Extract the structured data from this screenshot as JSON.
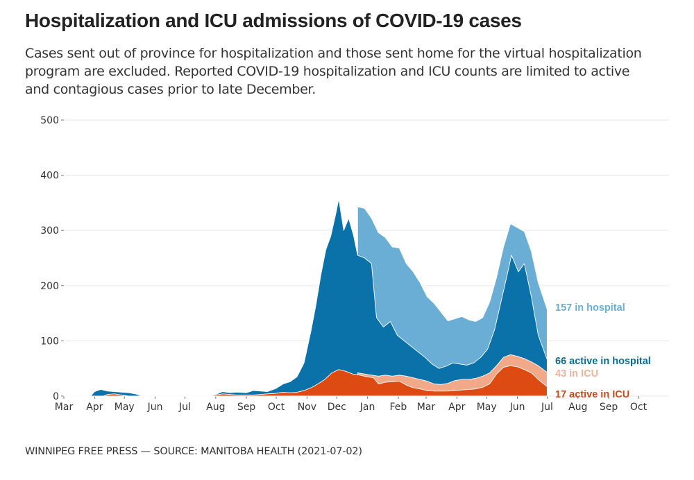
{
  "title": "Hospitalization and ICU admissions of COVID-19 cases",
  "subtitle": "Cases sent out of province for hospitalization and those sent home for the virtual hospitalization program are excluded. Reported COVID-19 hospitalization and ICU counts are limited to active and contagious cases prior to late December.",
  "footer": "WINNIPEG FREE PRESS — SOURCE: MANITOBA HEALTH (2021-07-02)",
  "colors": {
    "in_hospital": "#6aaed6",
    "active_in_hospital": "#0a72a8",
    "in_icu": "#f2a98a",
    "active_in_icu": "#dd4a12",
    "grid": "#ececec",
    "end_label_in_hospital": "#6aaed6",
    "end_label_active_in_hospital": "#0a6e94",
    "end_label_in_icu": "#f2b39a",
    "end_label_active_in_icu": "#c94a1e"
  },
  "chart_data": {
    "type": "area",
    "title": "Hospitalization and ICU admissions of COVID-19 cases",
    "xlabel": "",
    "ylabel": "",
    "ylim": [
      0,
      500
    ],
    "yticks": [
      0,
      100,
      200,
      300,
      400,
      500
    ],
    "grid": true,
    "x_range": [
      "2020-03-01",
      "2021-10-01"
    ],
    "xticks": [
      {
        "date": "2020-03-01",
        "label": "Mar"
      },
      {
        "date": "2020-04-01",
        "label": "Apr"
      },
      {
        "date": "2020-05-01",
        "label": "May"
      },
      {
        "date": "2020-06-01",
        "label": "Jun"
      },
      {
        "date": "2020-07-01",
        "label": "Jul"
      },
      {
        "date": "2020-08-01",
        "label": "Aug"
      },
      {
        "date": "2020-09-01",
        "label": "Sep"
      },
      {
        "date": "2020-10-01",
        "label": "Oct"
      },
      {
        "date": "2020-11-01",
        "label": "Nov"
      },
      {
        "date": "2020-12-01",
        "label": "Dec"
      },
      {
        "date": "2021-01-01",
        "label": "Jan"
      },
      {
        "date": "2021-02-01",
        "label": "Feb"
      },
      {
        "date": "2021-03-01",
        "label": "Mar"
      },
      {
        "date": "2021-04-01",
        "label": "Apr"
      },
      {
        "date": "2021-05-01",
        "label": "May"
      },
      {
        "date": "2021-06-01",
        "label": "Jun"
      },
      {
        "date": "2021-07-01",
        "label": "Jul"
      },
      {
        "date": "2021-08-01",
        "label": "Aug"
      },
      {
        "date": "2021-09-01",
        "label": "Sep"
      },
      {
        "date": "2021-10-01",
        "label": "Oct"
      }
    ],
    "series": [
      {
        "name": "In hospital",
        "key": "in_hospital",
        "end_label": "157 in hospital",
        "points": [
          [
            "2020-12-22",
            343
          ],
          [
            "2020-12-29",
            340
          ],
          [
            "2021-01-05",
            322
          ],
          [
            "2021-01-12",
            296
          ],
          [
            "2021-01-19",
            287
          ],
          [
            "2021-01-26",
            270
          ],
          [
            "2021-02-02",
            268
          ],
          [
            "2021-02-09",
            240
          ],
          [
            "2021-02-16",
            225
          ],
          [
            "2021-02-23",
            205
          ],
          [
            "2021-03-02",
            180
          ],
          [
            "2021-03-09",
            168
          ],
          [
            "2021-03-16",
            152
          ],
          [
            "2021-03-23",
            136
          ],
          [
            "2021-03-30",
            140
          ],
          [
            "2021-04-06",
            144
          ],
          [
            "2021-04-13",
            138
          ],
          [
            "2021-04-20",
            135
          ],
          [
            "2021-04-27",
            142
          ],
          [
            "2021-05-04",
            170
          ],
          [
            "2021-05-11",
            215
          ],
          [
            "2021-05-18",
            270
          ],
          [
            "2021-05-25",
            312
          ],
          [
            "2021-06-01",
            305
          ],
          [
            "2021-06-08",
            298
          ],
          [
            "2021-06-15",
            262
          ],
          [
            "2021-06-22",
            205
          ],
          [
            "2021-07-01",
            157
          ]
        ]
      },
      {
        "name": "Active in hospital",
        "key": "active_in_hospital",
        "end_label": "66 active in hospital",
        "points": [
          [
            "2020-03-01",
            0
          ],
          [
            "2020-03-28",
            0
          ],
          [
            "2020-04-01",
            8
          ],
          [
            "2020-04-07",
            12
          ],
          [
            "2020-04-14",
            9
          ],
          [
            "2020-04-21",
            8
          ],
          [
            "2020-04-28",
            7
          ],
          [
            "2020-05-05",
            6
          ],
          [
            "2020-05-12",
            4
          ],
          [
            "2020-05-16",
            2
          ],
          [
            "2020-05-17",
            0
          ],
          [
            "2020-07-22",
            0
          ],
          [
            "2020-08-01",
            3
          ],
          [
            "2020-08-08",
            8
          ],
          [
            "2020-08-15",
            6
          ],
          [
            "2020-08-22",
            7
          ],
          [
            "2020-09-01",
            6
          ],
          [
            "2020-09-08",
            10
          ],
          [
            "2020-09-15",
            9
          ],
          [
            "2020-09-22",
            8
          ],
          [
            "2020-10-01",
            14
          ],
          [
            "2020-10-08",
            22
          ],
          [
            "2020-10-15",
            26
          ],
          [
            "2020-10-22",
            35
          ],
          [
            "2020-10-29",
            60
          ],
          [
            "2020-11-05",
            118
          ],
          [
            "2020-11-10",
            165
          ],
          [
            "2020-11-15",
            220
          ],
          [
            "2020-11-20",
            265
          ],
          [
            "2020-11-25",
            290
          ],
          [
            "2020-11-30",
            330
          ],
          [
            "2020-12-03",
            357
          ],
          [
            "2020-12-08",
            300
          ],
          [
            "2020-12-13",
            322
          ],
          [
            "2020-12-18",
            290
          ],
          [
            "2020-12-22",
            255
          ],
          [
            "2020-12-29",
            250
          ],
          [
            "2021-01-05",
            240
          ],
          [
            "2021-01-10",
            142
          ],
          [
            "2021-01-17",
            125
          ],
          [
            "2021-01-24",
            135
          ],
          [
            "2021-01-31",
            110
          ],
          [
            "2021-02-07",
            100
          ],
          [
            "2021-02-14",
            90
          ],
          [
            "2021-02-21",
            80
          ],
          [
            "2021-02-28",
            70
          ],
          [
            "2021-03-07",
            58
          ],
          [
            "2021-03-14",
            50
          ],
          [
            "2021-03-21",
            54
          ],
          [
            "2021-03-28",
            60
          ],
          [
            "2021-04-04",
            58
          ],
          [
            "2021-04-11",
            56
          ],
          [
            "2021-04-18",
            60
          ],
          [
            "2021-04-25",
            70
          ],
          [
            "2021-05-02",
            85
          ],
          [
            "2021-05-09",
            120
          ],
          [
            "2021-05-16",
            175
          ],
          [
            "2021-05-23",
            230
          ],
          [
            "2021-05-26",
            255
          ],
          [
            "2021-06-02",
            225
          ],
          [
            "2021-06-08",
            240
          ],
          [
            "2021-06-15",
            180
          ],
          [
            "2021-06-22",
            110
          ],
          [
            "2021-07-01",
            66
          ]
        ]
      },
      {
        "name": "In ICU",
        "key": "in_icu",
        "end_label": "43 in ICU",
        "points": [
          [
            "2020-12-22",
            42
          ],
          [
            "2020-12-29",
            40
          ],
          [
            "2021-01-05",
            38
          ],
          [
            "2021-01-12",
            36
          ],
          [
            "2021-01-19",
            38
          ],
          [
            "2021-01-26",
            36
          ],
          [
            "2021-02-02",
            38
          ],
          [
            "2021-02-09",
            36
          ],
          [
            "2021-02-16",
            33
          ],
          [
            "2021-02-23",
            30
          ],
          [
            "2021-03-02",
            27
          ],
          [
            "2021-03-09",
            22
          ],
          [
            "2021-03-16",
            21
          ],
          [
            "2021-03-23",
            23
          ],
          [
            "2021-03-30",
            28
          ],
          [
            "2021-04-06",
            30
          ],
          [
            "2021-04-13",
            30
          ],
          [
            "2021-04-20",
            32
          ],
          [
            "2021-04-27",
            36
          ],
          [
            "2021-05-04",
            42
          ],
          [
            "2021-05-11",
            55
          ],
          [
            "2021-05-18",
            70
          ],
          [
            "2021-05-25",
            75
          ],
          [
            "2021-06-01",
            72
          ],
          [
            "2021-06-08",
            68
          ],
          [
            "2021-06-15",
            62
          ],
          [
            "2021-06-22",
            55
          ],
          [
            "2021-07-01",
            43
          ]
        ]
      },
      {
        "name": "Active in ICU",
        "key": "active_in_icu",
        "end_label": "17 active in ICU",
        "points": [
          [
            "2020-03-01",
            0
          ],
          [
            "2020-04-10",
            0
          ],
          [
            "2020-04-14",
            3
          ],
          [
            "2020-04-21",
            4
          ],
          [
            "2020-04-28",
            2
          ],
          [
            "2020-05-05",
            0
          ],
          [
            "2020-07-22",
            0
          ],
          [
            "2020-08-01",
            2
          ],
          [
            "2020-08-08",
            4
          ],
          [
            "2020-08-15",
            3
          ],
          [
            "2020-08-22",
            2
          ],
          [
            "2020-09-01",
            2
          ],
          [
            "2020-09-08",
            2
          ],
          [
            "2020-09-15",
            3
          ],
          [
            "2020-09-22",
            4
          ],
          [
            "2020-10-01",
            5
          ],
          [
            "2020-10-08",
            7
          ],
          [
            "2020-10-15",
            6
          ],
          [
            "2020-10-22",
            7
          ],
          [
            "2020-10-29",
            10
          ],
          [
            "2020-11-05",
            15
          ],
          [
            "2020-11-12",
            22
          ],
          [
            "2020-11-19",
            30
          ],
          [
            "2020-11-26",
            42
          ],
          [
            "2020-12-03",
            48
          ],
          [
            "2020-12-10",
            45
          ],
          [
            "2020-12-17",
            40
          ],
          [
            "2020-12-24",
            38
          ],
          [
            "2020-12-31",
            35
          ],
          [
            "2021-01-07",
            33
          ],
          [
            "2021-01-12",
            22
          ],
          [
            "2021-01-19",
            25
          ],
          [
            "2021-01-26",
            26
          ],
          [
            "2021-02-02",
            27
          ],
          [
            "2021-02-09",
            20
          ],
          [
            "2021-02-16",
            15
          ],
          [
            "2021-02-23",
            13
          ],
          [
            "2021-03-02",
            10
          ],
          [
            "2021-03-09",
            9
          ],
          [
            "2021-03-16",
            9
          ],
          [
            "2021-03-23",
            9
          ],
          [
            "2021-03-30",
            10
          ],
          [
            "2021-04-06",
            11
          ],
          [
            "2021-04-13",
            12
          ],
          [
            "2021-04-20",
            13
          ],
          [
            "2021-04-27",
            16
          ],
          [
            "2021-05-04",
            22
          ],
          [
            "2021-05-11",
            40
          ],
          [
            "2021-05-18",
            52
          ],
          [
            "2021-05-25",
            55
          ],
          [
            "2021-06-01",
            53
          ],
          [
            "2021-06-08",
            48
          ],
          [
            "2021-06-15",
            42
          ],
          [
            "2021-06-22",
            30
          ],
          [
            "2021-07-01",
            17
          ]
        ]
      }
    ]
  }
}
